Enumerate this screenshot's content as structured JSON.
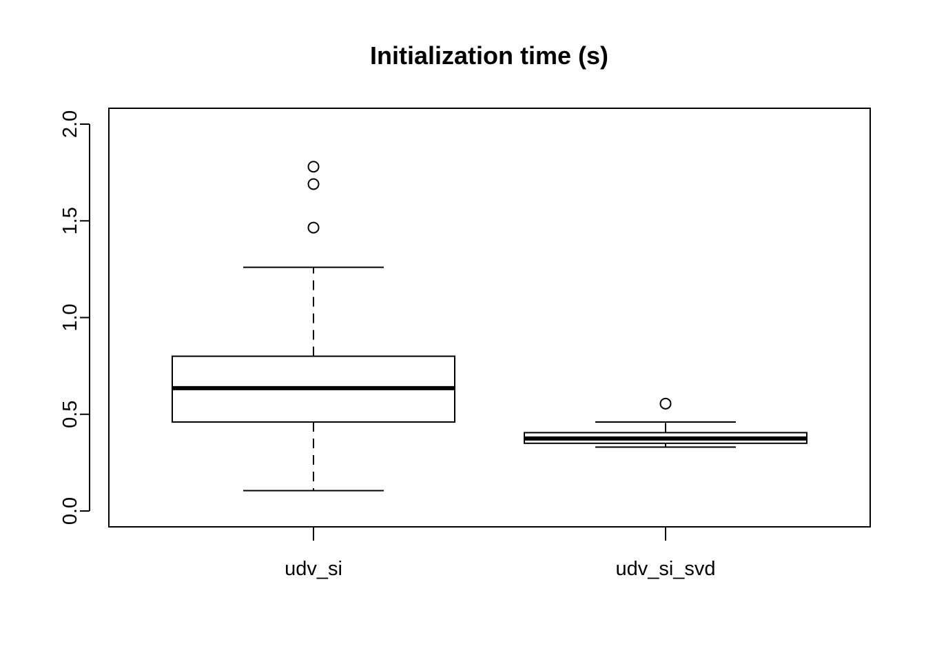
{
  "chart_data": {
    "type": "boxplot",
    "title": "Initialization time (s)",
    "xlabel": "",
    "ylabel": "",
    "ylim": [
      -0.07,
      2.08
    ],
    "yticks": [
      0.0,
      0.5,
      1.0,
      1.5,
      2.0
    ],
    "ytick_labels": [
      "0.0",
      "0.5",
      "1.0",
      "1.5",
      "2.0"
    ],
    "grid": false,
    "categories": [
      "udv_si",
      "udv_si_svd"
    ],
    "boxes": [
      {
        "name": "udv_si",
        "whisker_low": 0.105,
        "q1": 0.46,
        "median": 0.635,
        "q3": 0.8,
        "whisker_high": 1.26,
        "outliers": [
          1.465,
          1.69,
          1.78
        ]
      },
      {
        "name": "udv_si_svd",
        "whisker_low": 0.33,
        "q1": 0.35,
        "median": 0.375,
        "q3": 0.405,
        "whisker_high": 0.46,
        "outliers": [
          0.555
        ]
      }
    ]
  }
}
